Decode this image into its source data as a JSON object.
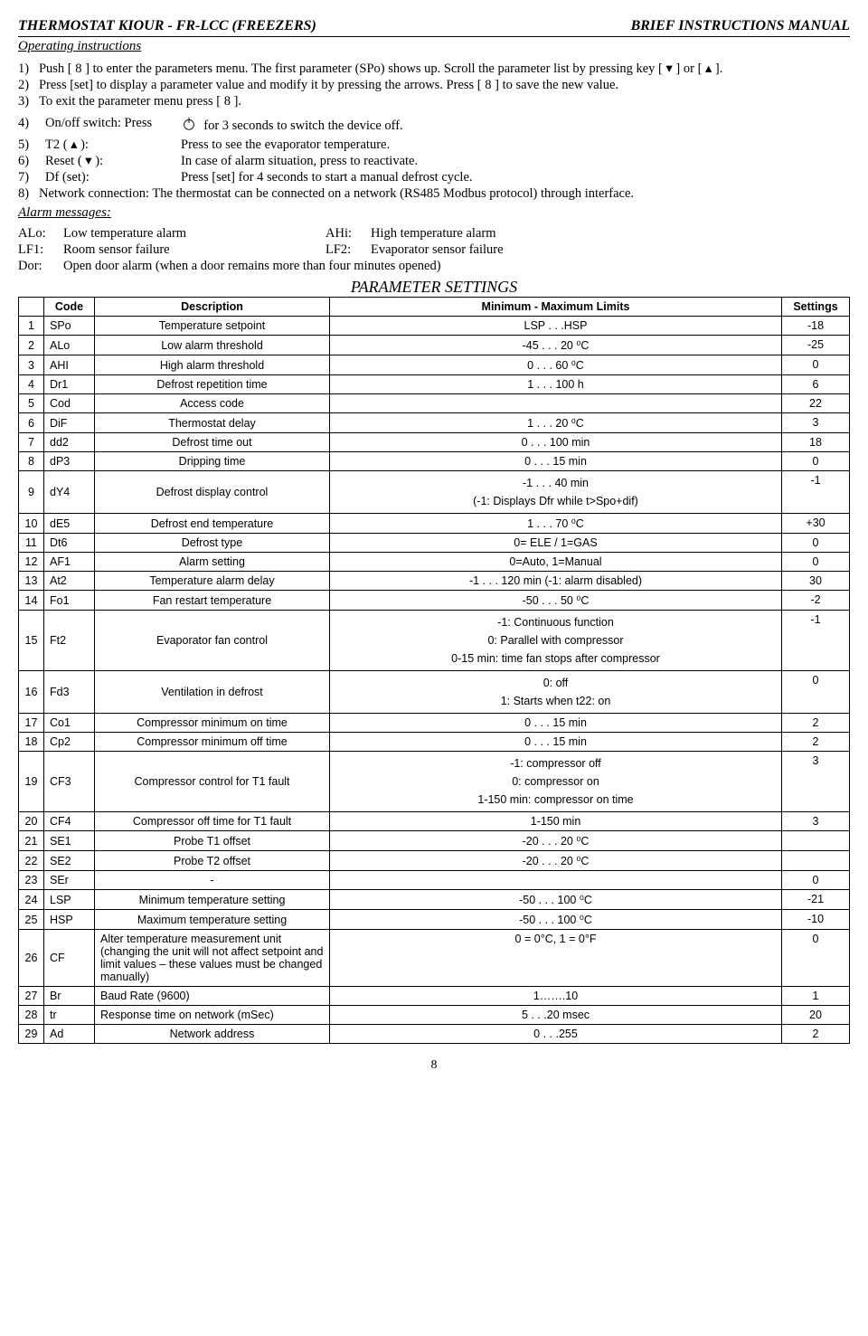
{
  "header": {
    "left": "THERMOSTAT KIOUR - FR-LCC (FREEZERS)",
    "right": "BRIEF INSTRUCTIONS MANUAL",
    "operating": "Operating instructions"
  },
  "inst": {
    "i1": "Push [ 8 ] to enter the parameters menu. The first parameter (SPo) shows up. Scroll the parameter list by pressing key [ ▾ ] or [ ▴ ].",
    "i2": "Press [set] to display a parameter value and modify it by pressing the arrows. Press [ 8 ] to save the new value.",
    "i3": "To exit the parameter menu press [ 8 ].",
    "i4_label": "On/off switch: Press",
    "i4_tail": "for 3 seconds to switch the device off.",
    "i5_label": "T2 ( ▴ ):",
    "i5_val": "Press to see the evaporator temperature.",
    "i6_label": "Reset ( ▾ ):",
    "i6_val": "In case of alarm situation, press to reactivate.",
    "i7_label": "Df (set):",
    "i7_val": "Press [set] for 4 seconds to start a manual defrost cycle.",
    "i8": "Network connection: The thermostat can be connected on a network (RS485 Modbus protocol) through interface."
  },
  "alarm": {
    "title": "Alarm messages:",
    "alo_k": "ALo:",
    "alo_v": "Low temperature alarm",
    "ahi_k": "AHi:",
    "ahi_v": "High temperature alarm",
    "lf1_k": "LF1:",
    "lf1_v": "Room sensor failure",
    "lf2_k": "LF2:",
    "lf2_v": "Evaporator sensor failure",
    "dor_k": "Dor:",
    "dor_v": "Open door alarm (when a door remains more than four minutes opened)"
  },
  "param": {
    "title": "PARAMETER SETTINGS",
    "columns": {
      "code": "Code",
      "desc": "Description",
      "lim": "Minimum - Maximum Limits",
      "set": "Settings"
    },
    "rows": [
      {
        "n": "1",
        "code": "SPo",
        "desc": "Temperature setpoint",
        "lim": "LSP . . .HSP",
        "set": "-18"
      },
      {
        "n": "2",
        "code": "ALo",
        "desc": "Low alarm threshold",
        "lim": "-45 . . . 20 ⁰C",
        "set": "-25"
      },
      {
        "n": "3",
        "code": "AHI",
        "desc": "High alarm threshold",
        "lim": "0 . . . 60 ⁰C",
        "set": "0"
      },
      {
        "n": "4",
        "code": "Dr1",
        "desc": "Defrost repetition time",
        "lim": "1 . . . 100 h",
        "set": "6"
      },
      {
        "n": "5",
        "code": "Cod",
        "desc": "Access code",
        "lim": "",
        "set": "22"
      },
      {
        "n": "6",
        "code": "DiF",
        "desc": "Thermostat delay",
        "lim": "1 . . . 20 ⁰C",
        "set": "3"
      },
      {
        "n": "7",
        "code": "dd2",
        "desc": "Defrost time out",
        "lim": "0 . . . 100 min",
        "set": "18"
      },
      {
        "n": "8",
        "code": "dP3",
        "desc": "Dripping time",
        "lim": "0 . . . 15 min",
        "set": "0"
      },
      {
        "n": "9",
        "code": "dY4",
        "desc": "Defrost display control",
        "lim": "-1 . . . 40 min\n(-1: Displays Dfr while t>Spo+dif)",
        "set": "-1"
      },
      {
        "n": "10",
        "code": "dE5",
        "desc": "Defrost end temperature",
        "lim": "1 . . . 70 ⁰C",
        "set": "+30"
      },
      {
        "n": "11",
        "code": "Dt6",
        "desc": "Defrost type",
        "lim": "0= ELE / 1=GAS",
        "set": "0"
      },
      {
        "n": "12",
        "code": "AF1",
        "desc": "Alarm setting",
        "lim": "0=Auto, 1=Manual",
        "set": "0"
      },
      {
        "n": "13",
        "code": "At2",
        "desc": "Temperature alarm delay",
        "lim": "-1 . . . 120 min   (-1: alarm disabled)",
        "set": "30"
      },
      {
        "n": "14",
        "code": "Fo1",
        "desc": "Fan restart temperature",
        "lim": "-50 . . . 50 ⁰C",
        "set": "-2"
      },
      {
        "n": "15",
        "code": "Ft2",
        "desc": "Evaporator fan control",
        "lim": "-1: Continuous function\n0: Parallel with compressor\n0-15 min: time fan stops after compressor",
        "set": "-1"
      },
      {
        "n": "16",
        "code": "Fd3",
        "desc": "Ventilation in defrost",
        "lim": "0: off\n1: Starts when t2<Fo1\n2: on",
        "set": "0"
      },
      {
        "n": "17",
        "code": "Co1",
        "desc": "Compressor minimum on time",
        "lim": "0 . . . 15 min",
        "set": "2"
      },
      {
        "n": "18",
        "code": "Cp2",
        "desc": "Compressor minimum off time",
        "lim": "0 . . . 15 min",
        "set": "2"
      },
      {
        "n": "19",
        "code": "CF3",
        "desc": "Compressor control for T1 fault",
        "lim": "-1: compressor off\n0: compressor on\n1-150 min: compressor on time",
        "set": "3"
      },
      {
        "n": "20",
        "code": "CF4",
        "desc": "Compressor off time for T1 fault",
        "lim": "1-150 min",
        "set": "3"
      },
      {
        "n": "21",
        "code": "SE1",
        "desc": "Probe T1 offset",
        "lim": "-20 . . . 20 ⁰C",
        "set": ""
      },
      {
        "n": "22",
        "code": "SE2",
        "desc": "Probe T2 offset",
        "lim": "-20 . . . 20 ⁰C",
        "set": ""
      },
      {
        "n": "23",
        "code": "SEr",
        "desc": "-",
        "lim": "",
        "set": "0"
      },
      {
        "n": "24",
        "code": "LSP",
        "desc": "Minimum temperature setting",
        "lim": "-50 . . . 100 ⁰C",
        "set": "-21"
      },
      {
        "n": "25",
        "code": "HSP",
        "desc": "Maximum temperature setting",
        "lim": "-50 . . . 100 ⁰C",
        "set": "-10"
      },
      {
        "n": "26",
        "code": "CF",
        "desc": "Alter temperature measurement unit (changing the unit will not affect setpoint and limit values – these values must be changed manually)",
        "desc_align": "l",
        "lim": "0 = 0°C, 1 = 0°F",
        "set": "0"
      },
      {
        "n": "27",
        "code": "Br",
        "desc": "Baud Rate (9600)",
        "desc_align": "l",
        "lim": "1…….10",
        "set": "1"
      },
      {
        "n": "28",
        "code": "tr",
        "desc": "Response time on network (mSec)",
        "desc_align": "l",
        "lim": "5 . . .20 msec",
        "set": "20"
      },
      {
        "n": "29",
        "code": "Ad",
        "desc": "Network address",
        "lim": "0 . . .255",
        "set": "2"
      }
    ]
  },
  "page": "8",
  "n4": "4)",
  "n5": "5)",
  "n6": "6)",
  "n7": "7)"
}
